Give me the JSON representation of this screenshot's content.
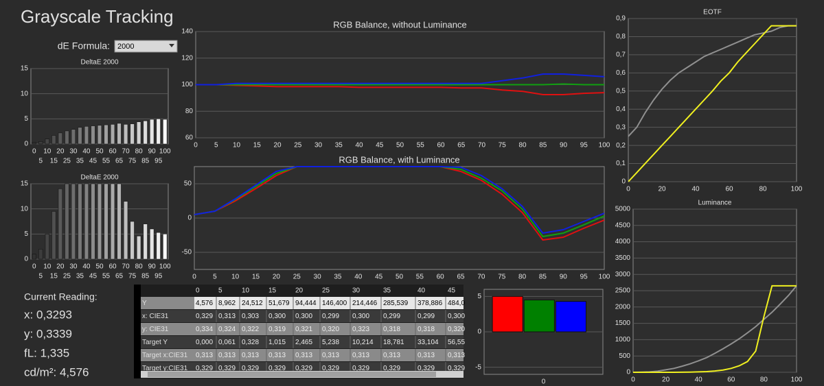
{
  "title": "Grayscale Tracking",
  "formula": {
    "label": "dE Formula:",
    "value": "2000"
  },
  "chart_data": [
    {
      "type": "bar",
      "title": "DeltaE 2000",
      "categories": [
        0,
        5,
        10,
        15,
        20,
        25,
        30,
        35,
        40,
        45,
        50,
        55,
        60,
        65,
        70,
        75,
        80,
        85,
        90,
        95,
        100
      ],
      "values": [
        0.3,
        0.5,
        1.0,
        1.7,
        2.2,
        2.6,
        2.9,
        3.3,
        3.5,
        3.6,
        3.7,
        3.8,
        3.9,
        4.1,
        3.9,
        4.0,
        4.4,
        4.6,
        4.9,
        5.0,
        4.9
      ],
      "ylim": [
        0,
        15
      ],
      "yticks": [
        0,
        5,
        10,
        15
      ],
      "grid": true
    },
    {
      "type": "bar",
      "title": "DeltaE 2000",
      "categories": [
        0,
        5,
        10,
        15,
        20,
        25,
        30,
        35,
        40,
        45,
        50,
        55,
        60,
        65,
        70,
        75,
        80,
        85,
        90,
        95,
        100
      ],
      "values": [
        1.0,
        2.0,
        5.0,
        9.5,
        14.0,
        15,
        15,
        15,
        15,
        15,
        15,
        15,
        15,
        15,
        11.5,
        7.5,
        4.6,
        7.0,
        6.0,
        5.3,
        5.0
      ],
      "ylim": [
        0,
        15
      ],
      "yticks": [
        0,
        5,
        10,
        15
      ],
      "grid": true
    },
    {
      "type": "line",
      "title": "RGB Balance, without Luminance",
      "x": [
        0,
        5,
        10,
        15,
        20,
        25,
        30,
        35,
        40,
        45,
        50,
        55,
        60,
        65,
        70,
        75,
        80,
        85,
        90,
        95,
        100
      ],
      "series": [
        {
          "color": "#e01010",
          "values": [
            100,
            100,
            99.5,
            99,
            98.5,
            98.5,
            98.5,
            98.5,
            98,
            98,
            98,
            98,
            98,
            97.5,
            97.5,
            96,
            95,
            92.5,
            92.5,
            93.5,
            94
          ]
        },
        {
          "color": "#10a010",
          "values": [
            100,
            100,
            100,
            100,
            100,
            100,
            100,
            100,
            100,
            100,
            100,
            100,
            100,
            100,
            100,
            100,
            100,
            100,
            100.5,
            100,
            100
          ]
        },
        {
          "color": "#1020e0",
          "values": [
            100,
            100,
            101,
            101,
            101,
            101,
            101,
            101,
            101,
            101,
            101,
            101,
            101,
            101,
            101,
            103,
            105,
            108,
            108,
            107,
            106
          ]
        }
      ],
      "xlim": [
        0,
        100
      ],
      "xticks": [
        0,
        5,
        10,
        15,
        20,
        25,
        30,
        35,
        40,
        45,
        50,
        55,
        60,
        65,
        70,
        75,
        80,
        85,
        90,
        95,
        100
      ],
      "ylim": [
        60,
        140
      ],
      "yticks": [
        60,
        80,
        100,
        120,
        140
      ],
      "grid": true
    },
    {
      "type": "line",
      "title": "RGB Balance, with Luminance",
      "x": [
        0,
        5,
        10,
        15,
        20,
        25,
        30,
        35,
        40,
        45,
        50,
        55,
        60,
        65,
        70,
        75,
        80,
        85,
        90,
        95,
        100
      ],
      "series": [
        {
          "color": "#e01010",
          "values": [
            5,
            10,
            25,
            43,
            62,
            75,
            75,
            75,
            75,
            75,
            75,
            75,
            75,
            68,
            55,
            35,
            8,
            -32,
            -28,
            -15,
            -3
          ]
        },
        {
          "color": "#10a010",
          "values": [
            5,
            10,
            27,
            46,
            65,
            75,
            75,
            75,
            75,
            75,
            75,
            75,
            75,
            71,
            58,
            40,
            13,
            -27,
            -22,
            -10,
            3
          ]
        },
        {
          "color": "#1020e0",
          "values": [
            5,
            10,
            28,
            48,
            68,
            75,
            75,
            75,
            75,
            75,
            75,
            75,
            75,
            74,
            62,
            43,
            17,
            -22,
            -17,
            -5,
            7
          ]
        }
      ],
      "xlim": [
        0,
        100
      ],
      "xticks": [
        0,
        5,
        10,
        15,
        20,
        25,
        30,
        35,
        40,
        45,
        50,
        55,
        60,
        65,
        70,
        75,
        80,
        85,
        90,
        95,
        100
      ],
      "ylim": [
        -75,
        75
      ],
      "yticks": [
        -50,
        0,
        50
      ],
      "grid": true
    },
    {
      "type": "line",
      "title": "EOTF",
      "x": [
        0,
        5,
        10,
        15,
        20,
        25,
        30,
        35,
        40,
        45,
        50,
        55,
        60,
        65,
        70,
        75,
        80,
        85,
        90,
        95,
        100
      ],
      "series": [
        {
          "color": "#909090",
          "values": [
            0.25,
            0.3,
            0.38,
            0.45,
            0.51,
            0.56,
            0.6,
            0.63,
            0.66,
            0.69,
            0.71,
            0.73,
            0.75,
            0.77,
            0.79,
            0.81,
            0.82,
            0.83,
            0.85,
            0.86,
            0.86
          ]
        },
        {
          "color": "#f0f020",
          "values": [
            0,
            0.05,
            0.1,
            0.15,
            0.2,
            0.25,
            0.3,
            0.35,
            0.4,
            0.45,
            0.5,
            0.555,
            0.6,
            0.66,
            0.71,
            0.76,
            0.81,
            0.86,
            0.86,
            0.86,
            0.86
          ]
        }
      ],
      "xlim": [
        0,
        100
      ],
      "xticks": [
        0,
        20,
        40,
        60,
        80,
        100
      ],
      "ylim": [
        0,
        0.9
      ],
      "yticks": [
        0,
        {
          "value": 0.1,
          "label": "0,1"
        },
        {
          "value": 0.2,
          "label": "0,2"
        },
        {
          "value": 0.3,
          "label": "0,3"
        },
        {
          "value": 0.4,
          "label": "0,4"
        },
        {
          "value": 0.5,
          "label": "0,5"
        },
        {
          "value": 0.6,
          "label": "0,6"
        },
        {
          "value": 0.7,
          "label": "0,7"
        },
        {
          "value": 0.8,
          "label": "0,8"
        },
        {
          "value": 0.9,
          "label": "0,9"
        }
      ],
      "grid": true
    },
    {
      "type": "line",
      "title": "Luminance",
      "x": [
        0,
        5,
        10,
        15,
        20,
        25,
        30,
        35,
        40,
        45,
        50,
        55,
        60,
        65,
        70,
        75,
        80,
        85,
        90,
        95,
        100
      ],
      "series": [
        {
          "color": "#909090",
          "values": [
            0,
            4,
            13,
            33,
            75,
            120,
            188,
            260,
            350,
            450,
            580,
            720,
            870,
            1030,
            1210,
            1400,
            1620,
            1840,
            2090,
            2350,
            2650
          ]
        },
        {
          "color": "#f0f020",
          "values": [
            0,
            0,
            0,
            0,
            0,
            1,
            3,
            6,
            12,
            22,
            40,
            70,
            120,
            200,
            330,
            650,
            1700,
            2650,
            2650,
            2650,
            2650
          ]
        }
      ],
      "xlim": [
        0,
        100
      ],
      "xticks": [
        0,
        20,
        40,
        60,
        80,
        100
      ],
      "ylim": [
        0,
        5000
      ],
      "yticks": [
        0,
        500,
        1000,
        1500,
        2000,
        2500,
        3000,
        3500,
        4000,
        4500,
        5000
      ],
      "grid": true
    },
    {
      "type": "bar",
      "categories": [
        0
      ],
      "series": [
        {
          "color": "#ff0000",
          "values": [
            5.0
          ]
        },
        {
          "color": "#008000",
          "values": [
            4.5
          ]
        },
        {
          "color": "#0000ff",
          "values": [
            4.3
          ]
        }
      ],
      "ylim": [
        -6,
        6
      ],
      "yticks": [
        -5,
        0,
        5
      ],
      "grid": true
    }
  ],
  "readings": {
    "heading": "Current Reading:",
    "lines": [
      "x: 0,3293",
      "y: 0,3339",
      "fL: 1,335",
      "cd/m²: 4,576"
    ]
  },
  "table": {
    "columns": [
      "0",
      "5",
      "10",
      "15",
      "20",
      "25",
      "30",
      "35",
      "40",
      "45"
    ],
    "rows": [
      {
        "label": "Y",
        "cells": [
          "4,576",
          "8,962",
          "24,512",
          "51,679",
          "94,444",
          "146,400",
          "214,446",
          "285,539",
          "378,886",
          "484,0"
        ]
      },
      {
        "label": "x: CIE31",
        "cells": [
          "0,329",
          "0,313",
          "0,303",
          "0,300",
          "0,300",
          "0,299",
          "0,300",
          "0,299",
          "0,299",
          "0,300"
        ]
      },
      {
        "label": "y: CIE31",
        "cells": [
          "0,334",
          "0,324",
          "0,322",
          "0,319",
          "0,321",
          "0,320",
          "0,323",
          "0,318",
          "0,318",
          "0,320"
        ]
      },
      {
        "label": "Target Y",
        "cells": [
          "0,000",
          "0,061",
          "0,328",
          "1,015",
          "2,465",
          "5,238",
          "10,214",
          "18,781",
          "33,104",
          "56,55"
        ]
      },
      {
        "label": "Target x:CIE31",
        "cells": [
          "0,313",
          "0,313",
          "0,313",
          "0,313",
          "0,313",
          "0,313",
          "0,313",
          "0,313",
          "0,313",
          "0,313"
        ]
      },
      {
        "label": "Target y:CIE31",
        "cells": [
          "0,329",
          "0,329",
          "0,329",
          "0,329",
          "0,329",
          "0,329",
          "0,329",
          "0,329",
          "0,329",
          "0,329"
        ]
      }
    ]
  }
}
